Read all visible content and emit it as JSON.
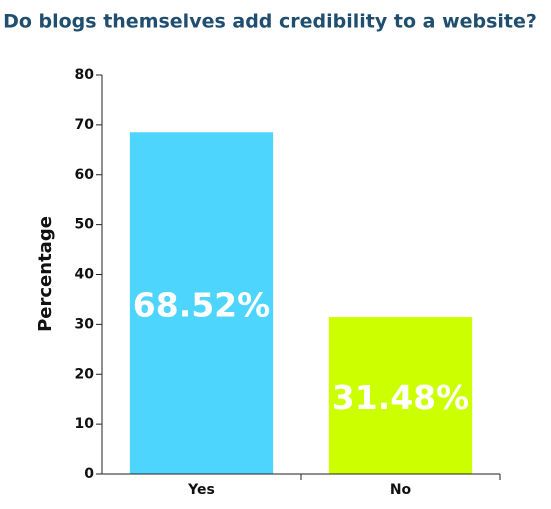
{
  "chart_data": {
    "type": "bar",
    "title": "Do blogs themselves add credibility to a website?",
    "ylabel": "Percentage",
    "categories": [
      "Yes",
      "No"
    ],
    "values": [
      68.52,
      31.48
    ],
    "value_labels": [
      "68.52%",
      "31.48%"
    ],
    "colors": [
      "#4dd5fd",
      "#ccff00"
    ],
    "ylim": [
      0,
      80
    ],
    "yticks": [
      0,
      10,
      20,
      30,
      40,
      50,
      60,
      70,
      80
    ],
    "grid": false
  }
}
